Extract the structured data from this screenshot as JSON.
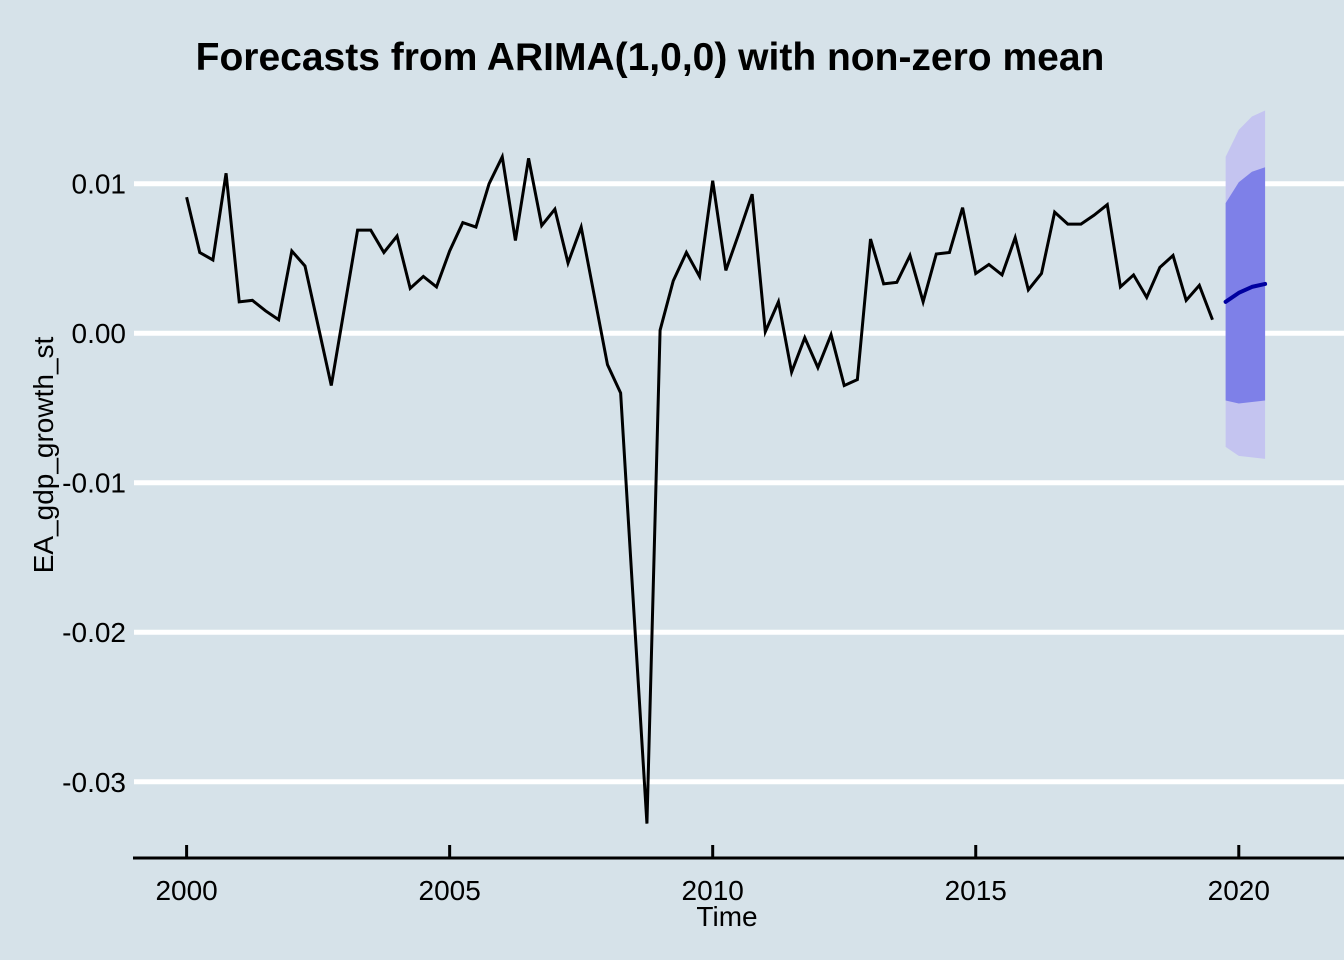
{
  "chart_data": {
    "type": "line",
    "title": "Forecasts from ARIMA(1,0,0) with non-zero mean",
    "xlabel": "Time",
    "ylabel": "EA_gdp_growth_st",
    "grid": true,
    "legend_position": "none",
    "x_ticks": {
      "labels": [
        "2000",
        "2005",
        "2010",
        "2015",
        "2020"
      ],
      "years": [
        2000,
        2005,
        2010,
        2015,
        2020
      ]
    },
    "y_ticks": {
      "labels": [
        "0.01",
        "0.00",
        "-0.01",
        "-0.02",
        "-0.03"
      ],
      "values": [
        0.01,
        0.0,
        -0.01,
        -0.02,
        -0.03
      ]
    },
    "xlim": [
      1999.0,
      2022.0
    ],
    "ylim": [
      -0.0351,
      0.0156
    ],
    "observed": {
      "name": "EA_gdp_growth_st",
      "x_start": 2000.0,
      "x_step": 0.25,
      "values": [
        0.0091,
        0.0054,
        0.0049,
        0.0107,
        0.0021,
        0.0022,
        0.0015,
        0.0009,
        0.0055,
        0.0045,
        0.0005,
        -0.0035,
        0.0017,
        0.0069,
        0.0069,
        0.0054,
        0.0065,
        0.003,
        0.0038,
        0.0031,
        0.0055,
        0.0074,
        0.0071,
        0.01,
        0.0118,
        0.0062,
        0.0117,
        0.0072,
        0.0083,
        0.0047,
        0.0071,
        0.0025,
        -0.0021,
        -0.004,
        -0.0185,
        -0.0328,
        0.0002,
        0.0035,
        0.0054,
        0.0038,
        0.0102,
        0.0042,
        0.0067,
        0.0093,
        0.0001,
        0.0021,
        -0.0026,
        -0.0003,
        -0.0023,
        -0.0001,
        -0.0035,
        -0.0031,
        0.0063,
        0.0033,
        0.0034,
        0.0052,
        0.0021,
        0.0053,
        0.0054,
        0.0084,
        0.004,
        0.0046,
        0.0039,
        0.0064,
        0.0029,
        0.004,
        0.0081,
        0.0073,
        0.0073,
        0.0079,
        0.0086,
        0.0031,
        0.0039,
        0.0024,
        0.0044,
        0.0052,
        0.0022,
        0.0032,
        0.0009
      ]
    },
    "forecast": {
      "x": [
        2019.75,
        2020.0,
        2020.25,
        2020.5
      ],
      "mean": [
        0.0021,
        0.0027,
        0.0031,
        0.0033
      ],
      "hi80": [
        0.0087,
        0.0101,
        0.0108,
        0.0111
      ],
      "lo80": [
        -0.0045,
        -0.0047,
        -0.0046,
        -0.0045
      ],
      "hi95": [
        0.0118,
        0.0136,
        0.0145,
        0.0149
      ],
      "lo95": [
        -0.0076,
        -0.0082,
        -0.0083,
        -0.0084
      ]
    },
    "colors": {
      "background": "#d6e2e9",
      "gridline": "#ffffff",
      "observed_line": "#000000",
      "forecast_line": "#0000a0",
      "interval_80": "#7e80e8",
      "interval_95": "#c4c4f0",
      "axis": "#000000",
      "text": "#000000"
    }
  }
}
